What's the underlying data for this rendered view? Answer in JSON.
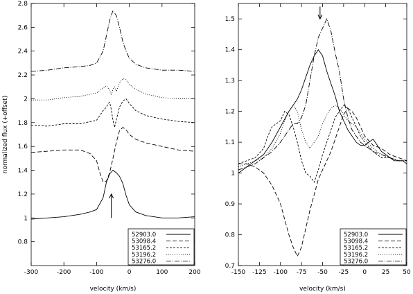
{
  "chart_data": [
    {
      "type": "line",
      "xlabel": "velocity (km/s)",
      "ylabel": "normalized flux (+offset)",
      "xlim": [
        -300,
        200
      ],
      "ylim": [
        0.6,
        2.8
      ],
      "xticks": [
        -300,
        -200,
        -100,
        0,
        100,
        200
      ],
      "yticks": [
        0.8,
        1,
        1.2,
        1.4,
        1.6,
        1.8,
        2,
        2.2,
        2.4,
        2.6,
        2.8
      ],
      "legend_position": "bottom-right",
      "annotations": [
        {
          "type": "arrow",
          "direction": "up",
          "x": -55,
          "y_from": 1.0,
          "y_to": 1.2
        }
      ],
      "series": [
        {
          "name": "52903.0",
          "dash": "solid",
          "x": [
            -300,
            -250,
            -200,
            -150,
            -120,
            -100,
            -80,
            -70,
            -60,
            -50,
            -40,
            -30,
            -20,
            -10,
            0,
            20,
            50,
            100,
            150,
            200
          ],
          "y": [
            0.99,
            1.0,
            1.01,
            1.03,
            1.05,
            1.07,
            1.17,
            1.3,
            1.37,
            1.4,
            1.38,
            1.35,
            1.29,
            1.19,
            1.11,
            1.05,
            1.02,
            1.0,
            1.0,
            1.01
          ]
        },
        {
          "name": "53098.4",
          "dash": "dash",
          "x": [
            -300,
            -250,
            -200,
            -150,
            -120,
            -100,
            -90,
            -80,
            -70,
            -60,
            -50,
            -40,
            -30,
            -20,
            -10,
            0,
            20,
            50,
            100,
            150,
            200
          ],
          "y": [
            1.55,
            1.56,
            1.57,
            1.57,
            1.54,
            1.48,
            1.38,
            1.3,
            1.31,
            1.38,
            1.5,
            1.63,
            1.73,
            1.76,
            1.74,
            1.7,
            1.66,
            1.63,
            1.6,
            1.57,
            1.56
          ]
        },
        {
          "name": "53165.2",
          "dash": "short",
          "x": [
            -300,
            -250,
            -200,
            -150,
            -100,
            -80,
            -70,
            -65,
            -60,
            -55,
            -50,
            -45,
            -40,
            -30,
            -20,
            -10,
            0,
            20,
            50,
            100,
            150,
            200
          ],
          "y": [
            1.78,
            1.77,
            1.79,
            1.79,
            1.82,
            1.9,
            1.93,
            1.96,
            1.97,
            1.91,
            1.82,
            1.76,
            1.82,
            1.93,
            1.98,
            2.0,
            1.96,
            1.9,
            1.86,
            1.83,
            1.81,
            1.8
          ]
        },
        {
          "name": "53196.2",
          "dash": "dot",
          "x": [
            -300,
            -250,
            -200,
            -150,
            -100,
            -80,
            -70,
            -60,
            -55,
            -50,
            -45,
            -40,
            -30,
            -20,
            -10,
            0,
            20,
            50,
            100,
            150,
            200
          ],
          "y": [
            1.99,
            1.99,
            2.01,
            2.02,
            2.05,
            2.09,
            2.11,
            2.07,
            2.03,
            2.08,
            2.1,
            2.06,
            2.13,
            2.17,
            2.16,
            2.12,
            2.08,
            2.04,
            2.01,
            2.0,
            2.0
          ]
        },
        {
          "name": "53276.0",
          "dash": "dashdot",
          "x": [
            -300,
            -250,
            -200,
            -150,
            -120,
            -100,
            -80,
            -70,
            -60,
            -50,
            -40,
            -30,
            -20,
            -10,
            0,
            20,
            50,
            100,
            150,
            200
          ],
          "y": [
            2.23,
            2.24,
            2.26,
            2.27,
            2.28,
            2.3,
            2.4,
            2.53,
            2.66,
            2.74,
            2.7,
            2.6,
            2.48,
            2.4,
            2.34,
            2.29,
            2.26,
            2.24,
            2.24,
            2.23
          ]
        }
      ]
    },
    {
      "type": "line",
      "xlabel": "velocity (km/s)",
      "ylabel": "",
      "xlim": [
        -150,
        50
      ],
      "ylim": [
        0.7,
        1.55
      ],
      "xticks": [
        -150,
        -125,
        -100,
        -75,
        -50,
        -25,
        0,
        25,
        50
      ],
      "yticks": [
        0.7,
        0.8,
        0.9,
        1,
        1.1,
        1.2,
        1.3,
        1.4,
        1.5
      ],
      "legend_position": "bottom-right",
      "annotations": [
        {
          "type": "arrow",
          "direction": "down",
          "x": -53,
          "y_from": 1.54,
          "y_to": 1.5
        }
      ],
      "series": [
        {
          "name": "52903.0",
          "dash": "solid",
          "x": [
            -150,
            -140,
            -130,
            -120,
            -110,
            -100,
            -90,
            -80,
            -75,
            -70,
            -65,
            -60,
            -55,
            -50,
            -45,
            -40,
            -35,
            -30,
            -25,
            -20,
            -15,
            -10,
            -5,
            0,
            5,
            10,
            15,
            20,
            25,
            30,
            35,
            40,
            45,
            50
          ],
          "y": [
            1.0,
            1.02,
            1.04,
            1.06,
            1.1,
            1.15,
            1.2,
            1.24,
            1.27,
            1.31,
            1.35,
            1.38,
            1.4,
            1.38,
            1.33,
            1.29,
            1.25,
            1.2,
            1.17,
            1.14,
            1.12,
            1.1,
            1.09,
            1.09,
            1.1,
            1.11,
            1.09,
            1.07,
            1.06,
            1.05,
            1.04,
            1.04,
            1.04,
            1.03
          ]
        },
        {
          "name": "53098.4",
          "dash": "dash",
          "x": [
            -150,
            -140,
            -130,
            -120,
            -110,
            -100,
            -95,
            -90,
            -85,
            -80,
            -75,
            -70,
            -65,
            -60,
            -55,
            -50,
            -45,
            -40,
            -35,
            -30,
            -25,
            -20,
            -15,
            -10,
            -5,
            0,
            10,
            20,
            30,
            40,
            50
          ],
          "y": [
            1.03,
            1.03,
            1.02,
            1.0,
            0.96,
            0.9,
            0.85,
            0.8,
            0.76,
            0.73,
            0.76,
            0.82,
            0.88,
            0.93,
            0.98,
            1.01,
            1.04,
            1.07,
            1.11,
            1.15,
            1.19,
            1.21,
            1.2,
            1.18,
            1.15,
            1.12,
            1.09,
            1.08,
            1.06,
            1.05,
            1.04
          ]
        },
        {
          "name": "53165.2",
          "dash": "short",
          "x": [
            -150,
            -140,
            -130,
            -120,
            -115,
            -110,
            -105,
            -100,
            -95,
            -90,
            -85,
            -80,
            -75,
            -70,
            -65,
            -60,
            -55,
            -50,
            -45,
            -40,
            -35,
            -30,
            -25,
            -20,
            -15,
            -10,
            -5,
            0,
            10,
            20,
            30,
            40,
            50
          ],
          "y": [
            1.03,
            1.04,
            1.05,
            1.08,
            1.12,
            1.15,
            1.16,
            1.17,
            1.2,
            1.19,
            1.15,
            1.1,
            1.04,
            1.0,
            0.99,
            0.97,
            1.01,
            1.06,
            1.1,
            1.14,
            1.18,
            1.2,
            1.22,
            1.21,
            1.18,
            1.15,
            1.12,
            1.1,
            1.07,
            1.05,
            1.05,
            1.04,
            1.04
          ]
        },
        {
          "name": "53196.2",
          "dash": "dot",
          "x": [
            -150,
            -140,
            -130,
            -120,
            -110,
            -100,
            -95,
            -90,
            -85,
            -80,
            -75,
            -70,
            -65,
            -60,
            -55,
            -50,
            -45,
            -40,
            -35,
            -30,
            -25,
            -20,
            -15,
            -10,
            -5,
            0,
            10,
            20,
            30,
            40,
            50
          ],
          "y": [
            1.02,
            1.03,
            1.04,
            1.05,
            1.08,
            1.13,
            1.17,
            1.2,
            1.22,
            1.2,
            1.14,
            1.1,
            1.08,
            1.1,
            1.12,
            1.16,
            1.19,
            1.21,
            1.22,
            1.21,
            1.19,
            1.17,
            1.16,
            1.15,
            1.13,
            1.11,
            1.08,
            1.06,
            1.05,
            1.04,
            1.04
          ]
        },
        {
          "name": "53276.0",
          "dash": "dashdot",
          "x": [
            -150,
            -140,
            -130,
            -120,
            -110,
            -100,
            -95,
            -90,
            -85,
            -80,
            -75,
            -70,
            -65,
            -60,
            -55,
            -50,
            -45,
            -40,
            -35,
            -30,
            -25,
            -20,
            -15,
            -10,
            -5,
            0,
            10,
            20,
            30,
            40,
            50
          ],
          "y": [
            1.01,
            1.02,
            1.03,
            1.05,
            1.07,
            1.1,
            1.12,
            1.14,
            1.16,
            1.16,
            1.18,
            1.22,
            1.3,
            1.38,
            1.44,
            1.47,
            1.5,
            1.46,
            1.39,
            1.33,
            1.24,
            1.18,
            1.14,
            1.12,
            1.1,
            1.09,
            1.07,
            1.06,
            1.05,
            1.04,
            1.04
          ]
        }
      ]
    }
  ]
}
